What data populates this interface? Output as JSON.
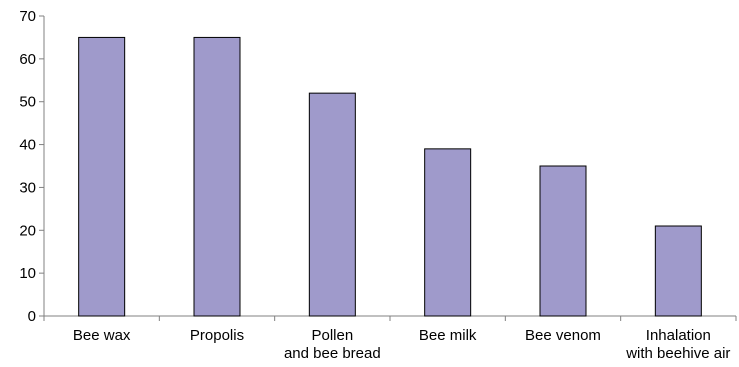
{
  "chart_data": {
    "type": "bar",
    "categories": [
      [
        "Bee wax"
      ],
      [
        "Propolis"
      ],
      [
        "Pollen",
        "and bee bread"
      ],
      [
        "Bee milk"
      ],
      [
        "Bee venom"
      ],
      [
        "Inhalation",
        "with beehive air"
      ]
    ],
    "values": [
      65,
      65,
      52,
      39,
      35,
      21
    ],
    "ylim": [
      0,
      70
    ],
    "yticks": [
      "0",
      "10",
      "20",
      "30",
      "40",
      "50",
      "60",
      "70"
    ],
    "title": "",
    "xlabel": "",
    "ylabel": "",
    "grid": false,
    "legend": "none",
    "bar_color": "#9f9acb",
    "bar_edge_color": "#000000",
    "axis_color": "#808080"
  }
}
